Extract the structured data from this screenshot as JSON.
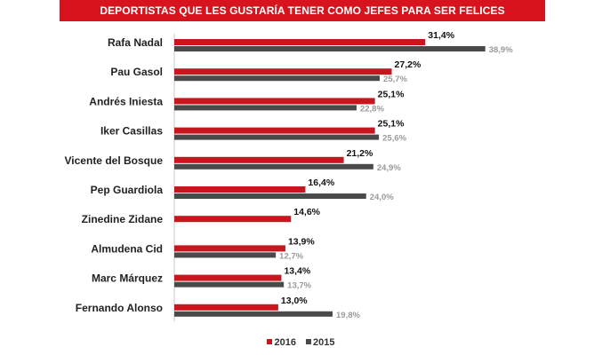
{
  "title": "DEPORTISTAS QUE LES GUSTARÍA TENER COMO JEFES PARA SER FELICES",
  "colors": {
    "banner": "#d7141e",
    "series_2016": "#c8161e",
    "series_2015": "#4a4a4a"
  },
  "chart_data": {
    "type": "bar",
    "orientation": "horizontal",
    "title": "DEPORTISTAS QUE LES GUSTARÍA TENER COMO JEFES PARA SER FELICES",
    "categories": [
      "Rafa Nadal",
      "Pau Gasol",
      "Andrés Iniesta",
      "Iker Casillas",
      "Vicente del Bosque",
      "Pep Guardiola",
      "Zinedine Zidane",
      "Almudena Cid",
      "Marc Márquez",
      "Fernando Alonso"
    ],
    "series": [
      {
        "name": "2016",
        "values": [
          31.4,
          27.2,
          25.1,
          25.1,
          21.2,
          16.4,
          14.6,
          13.9,
          13.4,
          13.0
        ],
        "labels": [
          "31,4%",
          "27,2%",
          "25,1%",
          "25,1%",
          "21,2%",
          "16,4%",
          "14,6%",
          "13,9%",
          "13,4%",
          "13,0%"
        ]
      },
      {
        "name": "2015",
        "values": [
          38.9,
          25.7,
          22.8,
          25.6,
          24.9,
          24.0,
          null,
          12.7,
          13.7,
          19.8
        ],
        "labels": [
          "38,9%",
          "25,7%",
          "22,8%",
          "25,6%",
          "24,9%",
          "24,0%",
          null,
          "12,7%",
          "13,7%",
          "19,8%"
        ]
      }
    ],
    "xlim": [
      0,
      40
    ],
    "grid": false,
    "legend": "bottom-center"
  }
}
